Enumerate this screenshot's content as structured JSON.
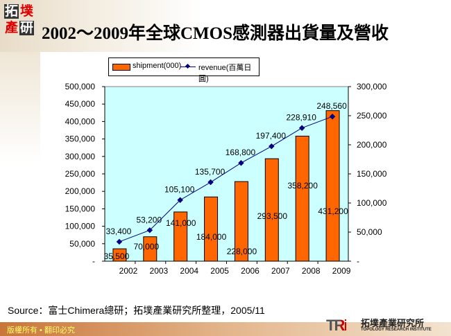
{
  "logo": {
    "chars": [
      "拓",
      "墣",
      "產",
      "研"
    ]
  },
  "title": "2002～2009年全球CMOS感測器出貨量及營收",
  "chart_data": {
    "type": "bar+line",
    "categories": [
      "2002",
      "2003",
      "2004",
      "2005",
      "2006",
      "2007",
      "2008",
      "2009"
    ],
    "series": [
      {
        "name": "shipment(000)",
        "type": "bar",
        "axis": "left",
        "color": "#ff6600",
        "values": [
          35500,
          70000,
          141000,
          184000,
          228000,
          293500,
          358200,
          431200
        ],
        "labels": [
          "35,500",
          "70,000",
          "141,000",
          "184,000",
          "228,000",
          "293,500",
          "358,200",
          "431,200"
        ]
      },
      {
        "name": "revenue(百萬日圓)",
        "type": "line",
        "axis": "right",
        "color": "#000080",
        "values": [
          33400,
          53200,
          105100,
          135700,
          168800,
          197400,
          228910,
          248560
        ],
        "labels": [
          "33,400",
          "53,200",
          "105,100",
          "135,700",
          "168,800",
          "197,400",
          "228,910",
          "248,560"
        ]
      }
    ],
    "left_axis": {
      "ylim": [
        0,
        500000
      ],
      "ticks": [
        "-",
        "50,000",
        "100,000",
        "150,000",
        "200,000",
        "250,000",
        "300,000",
        "350,000",
        "400,000",
        "450,000",
        "500,000"
      ]
    },
    "right_axis": {
      "ylim": [
        0,
        300000
      ],
      "ticks": [
        "-",
        "50,000",
        "100,000",
        "150,000",
        "200,000",
        "250,000",
        "300,000"
      ]
    },
    "legend": "top",
    "background": "#ccffff",
    "grid": false
  },
  "source": "Source：富士Chimera總研；拓墣產業研究所整理，2005/11",
  "footer": "版權所有 • 翻印必究",
  "tri": {
    "mark": "TRi",
    "name_cn": "拓墣產業研究所",
    "name_en": "TOPOLOGY RESEARCH INSTITUTE"
  }
}
